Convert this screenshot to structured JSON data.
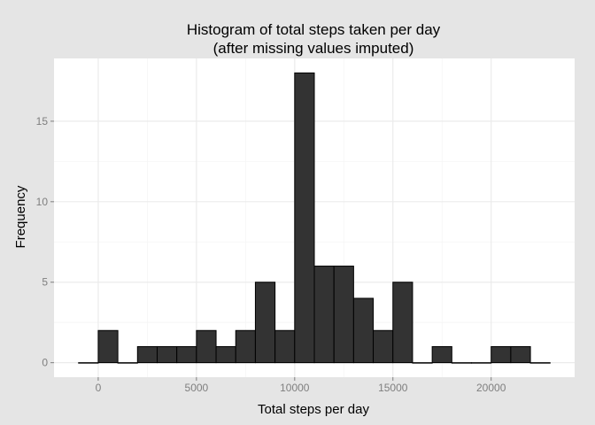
{
  "chart_data": {
    "type": "bar",
    "title": "Histogram of total steps taken per day",
    "subtitle": "(after missing values imputed)",
    "xlabel": "Total steps per day",
    "ylabel": "Frequency",
    "bin_width": 1000,
    "bins": [
      {
        "x0": -1000,
        "x1": 0,
        "count": 0
      },
      {
        "x0": 0,
        "x1": 1000,
        "count": 2
      },
      {
        "x0": 1000,
        "x1": 2000,
        "count": 0
      },
      {
        "x0": 2000,
        "x1": 3000,
        "count": 1
      },
      {
        "x0": 3000,
        "x1": 4000,
        "count": 1
      },
      {
        "x0": 4000,
        "x1": 5000,
        "count": 1
      },
      {
        "x0": 5000,
        "x1": 6000,
        "count": 2
      },
      {
        "x0": 6000,
        "x1": 7000,
        "count": 1
      },
      {
        "x0": 7000,
        "x1": 8000,
        "count": 2
      },
      {
        "x0": 8000,
        "x1": 9000,
        "count": 5
      },
      {
        "x0": 9000,
        "x1": 10000,
        "count": 2
      },
      {
        "x0": 10000,
        "x1": 11000,
        "count": 18
      },
      {
        "x0": 11000,
        "x1": 12000,
        "count": 6
      },
      {
        "x0": 12000,
        "x1": 13000,
        "count": 6
      },
      {
        "x0": 13000,
        "x1": 14000,
        "count": 4
      },
      {
        "x0": 14000,
        "x1": 15000,
        "count": 2
      },
      {
        "x0": 15000,
        "x1": 16000,
        "count": 5
      },
      {
        "x0": 16000,
        "x1": 17000,
        "count": 0
      },
      {
        "x0": 17000,
        "x1": 18000,
        "count": 1
      },
      {
        "x0": 18000,
        "x1": 19000,
        "count": 0
      },
      {
        "x0": 19000,
        "x1": 20000,
        "count": 0
      },
      {
        "x0": 20000,
        "x1": 21000,
        "count": 1
      },
      {
        "x0": 21000,
        "x1": 22000,
        "count": 1
      },
      {
        "x0": 22000,
        "x1": 23000,
        "count": 0
      }
    ],
    "xticks": [
      0,
      5000,
      10000,
      15000,
      20000
    ],
    "yticks": [
      0,
      5,
      10,
      15
    ],
    "xlim": [
      -2250,
      24250
    ],
    "ylim": [
      -0.9,
      18.9
    ],
    "grid": true,
    "legend": "none",
    "colors": {
      "bar_fill": "#333333",
      "bar_outline": "#000000",
      "panel_background": "#ffffff",
      "plot_background": "#e5e5e5",
      "grid_major": "#ebebeb",
      "grid_minor": "#f5f5f5"
    }
  }
}
